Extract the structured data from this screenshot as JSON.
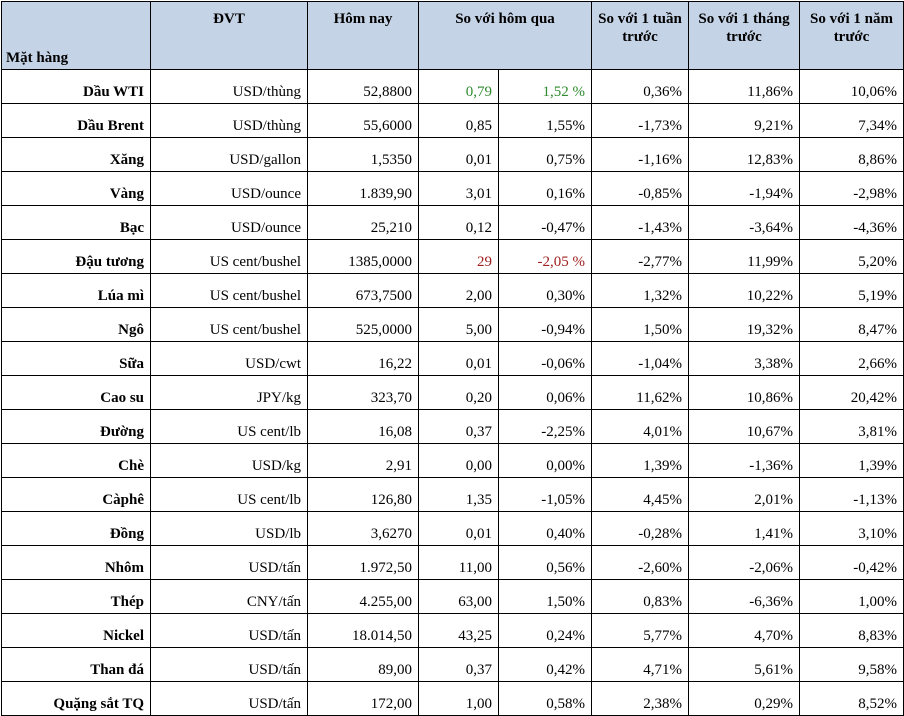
{
  "headers": {
    "item": "Mặt hàng",
    "unit": "ĐVT",
    "today": "Hôm nay",
    "vs_yesterday": "So với hôm qua",
    "vs_week": "So với 1 tuần trước",
    "vs_month": "So với 1 tháng trước",
    "vs_year": "So với 1 năm trước"
  },
  "colors": {
    "header_bg": "#c5d3e6",
    "up": "#2e8b2e",
    "down": "#a02020"
  },
  "rows": [
    {
      "name": "Dầu WTI",
      "unit": "USD/thùng",
      "today": "52,8800",
      "chg": "0,79",
      "chg_pct": "1,52 %",
      "week": "0,36%",
      "month": "11,86%",
      "year": "10,06%",
      "hl": "pos"
    },
    {
      "name": "Dầu Brent",
      "unit": "USD/thùng",
      "today": "55,6000",
      "chg": "0,85",
      "chg_pct": "1,55%",
      "week": "-1,73%",
      "month": "9,21%",
      "year": "7,34%"
    },
    {
      "name": "Xăng",
      "unit": "USD/gallon",
      "today": "1,5350",
      "chg": "0,01",
      "chg_pct": "0,75%",
      "week": "-1,16%",
      "month": "12,83%",
      "year": "8,86%"
    },
    {
      "name": "Vàng",
      "unit": "USD/ounce",
      "today": "1.839,90",
      "chg": "3,01",
      "chg_pct": "0,16%",
      "week": "-0,85%",
      "month": "-1,94%",
      "year": "-2,98%"
    },
    {
      "name": "Bạc",
      "unit": "USD/ounce",
      "today": "25,210",
      "chg": "0,12",
      "chg_pct": "-0,47%",
      "week": "-1,43%",
      "month": "-3,64%",
      "year": "-4,36%"
    },
    {
      "name": "Đậu tương",
      "unit": "US cent/bushel",
      "today": "1385,0000",
      "chg": "29",
      "chg_pct": "-2,05 %",
      "week": "-2,77%",
      "month": "11,99%",
      "year": "5,20%",
      "hl": "neg"
    },
    {
      "name": "Lúa mì",
      "unit": "US cent/bushel",
      "today": "673,7500",
      "chg": "2,00",
      "chg_pct": "0,30%",
      "week": "1,32%",
      "month": "10,22%",
      "year": "5,19%"
    },
    {
      "name": "Ngô",
      "unit": "US cent/bushel",
      "today": "525,0000",
      "chg": "5,00",
      "chg_pct": "-0,94%",
      "week": "1,50%",
      "month": "19,32%",
      "year": "8,47%"
    },
    {
      "name": "Sữa",
      "unit": "USD/cwt",
      "today": "16,22",
      "chg": "0,01",
      "chg_pct": "-0,06%",
      "week": "-1,04%",
      "month": "3,38%",
      "year": "2,66%"
    },
    {
      "name": "Cao su",
      "unit": "JPY/kg",
      "today": "323,70",
      "chg": "0,20",
      "chg_pct": "0,06%",
      "week": "11,62%",
      "month": "10,86%",
      "year": "20,42%"
    },
    {
      "name": "Đường",
      "unit": "US cent/lb",
      "today": "16,08",
      "chg": "0,37",
      "chg_pct": "-2,25%",
      "week": "4,01%",
      "month": "10,67%",
      "year": "3,81%"
    },
    {
      "name": "Chè",
      "unit": "USD/kg",
      "today": "2,91",
      "chg": "0,00",
      "chg_pct": "0,00%",
      "week": "1,39%",
      "month": "-1,36%",
      "year": "1,39%"
    },
    {
      "name": "Càphê",
      "unit": "US cent/lb",
      "today": "126,80",
      "chg": "1,35",
      "chg_pct": "-1,05%",
      "week": "4,45%",
      "month": "2,01%",
      "year": "-1,13%"
    },
    {
      "name": "Đồng",
      "unit": "USD/lb",
      "today": "3,6270",
      "chg": "0,01",
      "chg_pct": "0,40%",
      "week": "-0,28%",
      "month": "1,41%",
      "year": "3,10%"
    },
    {
      "name": "Nhôm",
      "unit": "USD/tấn",
      "today": "1.972,50",
      "chg": "11,00",
      "chg_pct": "0,56%",
      "week": "-2,60%",
      "month": "-2,06%",
      "year": "-0,42%"
    },
    {
      "name": "Thép",
      "unit": "CNY/tấn",
      "today": "4.255,00",
      "chg": "63,00",
      "chg_pct": "1,50%",
      "week": "0,83%",
      "month": "-6,36%",
      "year": "1,00%"
    },
    {
      "name": "Nickel",
      "unit": "USD/tấn",
      "today": "18.014,50",
      "chg": "43,25",
      "chg_pct": "0,24%",
      "week": "5,77%",
      "month": "4,70%",
      "year": "8,83%"
    },
    {
      "name": "Than đá",
      "unit": "USD/tấn",
      "today": "89,00",
      "chg": "0,37",
      "chg_pct": "0,42%",
      "week": "4,71%",
      "month": "5,61%",
      "year": "9,58%"
    },
    {
      "name": "Quặng sắt TQ",
      "unit": "USD/tấn",
      "today": "172,00",
      "chg": "1,00",
      "chg_pct": "0,58%",
      "week": "2,38%",
      "month": "0,29%",
      "year": "8,52%"
    }
  ]
}
